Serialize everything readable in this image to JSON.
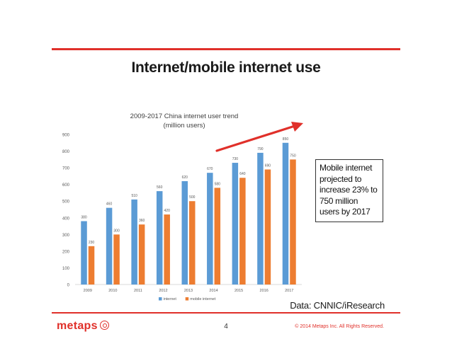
{
  "slide": {
    "title": "Internet/mobile internet use",
    "callout_lines": [
      "Mobile internet",
      "projected to",
      "increase 23% to",
      "750 million",
      "users by 2017"
    ],
    "source": "Data: CNNIC/iResearch",
    "logo": "metaps",
    "page_number": "4",
    "copyright": "© 2014 Metaps Inc. All Rights Reserved."
  },
  "colors": {
    "accent": "#e0302a",
    "internet": "#5b9bd5",
    "mobile": "#ed7d31"
  },
  "chart_data": {
    "type": "bar",
    "title_lines": [
      "2009-2017 China internet user trend",
      "(million users)"
    ],
    "categories": [
      "2009",
      "2010",
      "2011",
      "2012",
      "2013",
      "2014",
      "2015",
      "2016",
      "2017"
    ],
    "series": [
      {
        "name": "internet",
        "values": [
          380,
          460,
          510,
          560,
          620,
          670,
          730,
          790,
          850
        ]
      },
      {
        "name": "mobile internet",
        "values": [
          230,
          300,
          360,
          420,
          500,
          580,
          640,
          690,
          750
        ]
      }
    ],
    "yticks": [
      0,
      100,
      200,
      300,
      400,
      500,
      600,
      700,
      800,
      900
    ],
    "ylim": [
      0,
      900
    ],
    "legend_position": "bottom",
    "grid": false,
    "annotation": "rising trend arrow"
  }
}
